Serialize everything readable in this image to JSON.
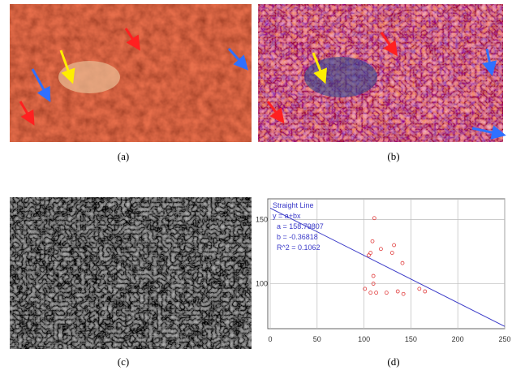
{
  "panels": [
    {
      "caption": "(a)"
    },
    {
      "caption": "(b)"
    },
    {
      "caption": "(c)"
    },
    {
      "caption": "(d)"
    }
  ],
  "chart_data": {
    "type": "scatter",
    "grid": true,
    "xlim": [
      0,
      250
    ],
    "xticks": [
      0,
      50,
      100,
      150,
      200,
      250
    ],
    "ylim": [
      65,
      166
    ],
    "yticks": [
      100,
      150
    ],
    "series": [
      {
        "color": "#e03a3a",
        "x": [
          111,
          109,
          118,
          107,
          105,
          132,
          130,
          141,
          110,
          110,
          101,
          107,
          113,
          124,
          136,
          142,
          159,
          165
        ],
        "values": [
          151,
          133,
          127,
          124,
          122,
          130,
          124,
          116,
          106,
          100,
          96,
          93,
          93,
          93,
          94,
          92,
          96,
          94
        ]
      }
    ],
    "fit": {
      "name": "Straight Line",
      "equation": "y = a+bx",
      "color": "#3a3ac8",
      "a": {
        "value": 158.79807,
        "label": "a = 158.79807"
      },
      "b": {
        "value": -0.36818,
        "label": "b = -0.36818"
      },
      "r2": {
        "value": 0.1062,
        "label": "R^2 = 0.1062"
      }
    }
  }
}
